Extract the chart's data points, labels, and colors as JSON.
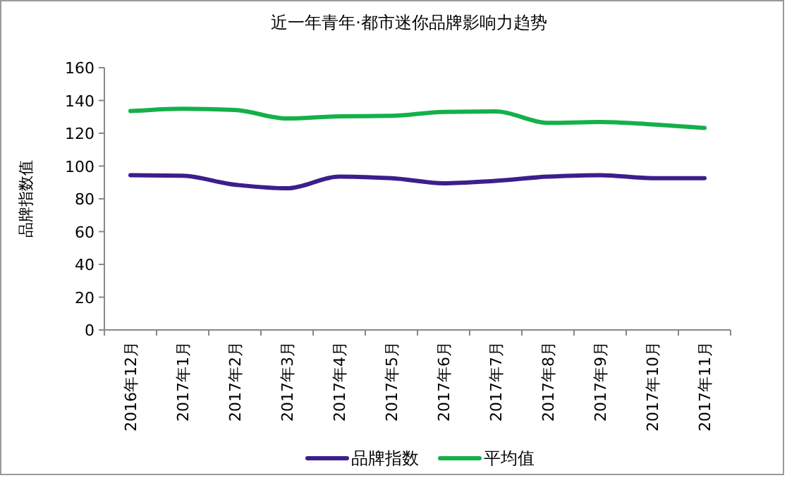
{
  "chart_data": {
    "type": "line",
    "title": "近一年青年·都市迷你品牌影响力趋势",
    "ylabel": "品牌指数值",
    "categories": [
      "2016年12月",
      "2017年1月",
      "2017年2月",
      "2017年3月",
      "2017年4月",
      "2017年5月",
      "2017年6月",
      "2017年7月",
      "2017年8月",
      "2017年9月",
      "2017年10月",
      "2017年11月"
    ],
    "series": [
      {
        "name": "品牌指数",
        "color": "#3c1e8c",
        "values": [
          94.4,
          94.1,
          88.6,
          86.4,
          93.5,
          92.6,
          89.5,
          91,
          93.5,
          94.4,
          92.6,
          92.6
        ]
      },
      {
        "name": "平均值",
        "color": "#14b04a",
        "values": [
          133.6,
          134.9,
          134.2,
          129,
          130.3,
          130.6,
          133,
          133.3,
          126.3,
          126.9,
          125.4,
          123.2
        ]
      }
    ],
    "ylim": [
      0,
      160
    ],
    "yticks": [
      0,
      20,
      40,
      60,
      80,
      100,
      120,
      140,
      160
    ],
    "grid": false,
    "legend": "bottom",
    "marker": "none",
    "line_style": "solid"
  }
}
